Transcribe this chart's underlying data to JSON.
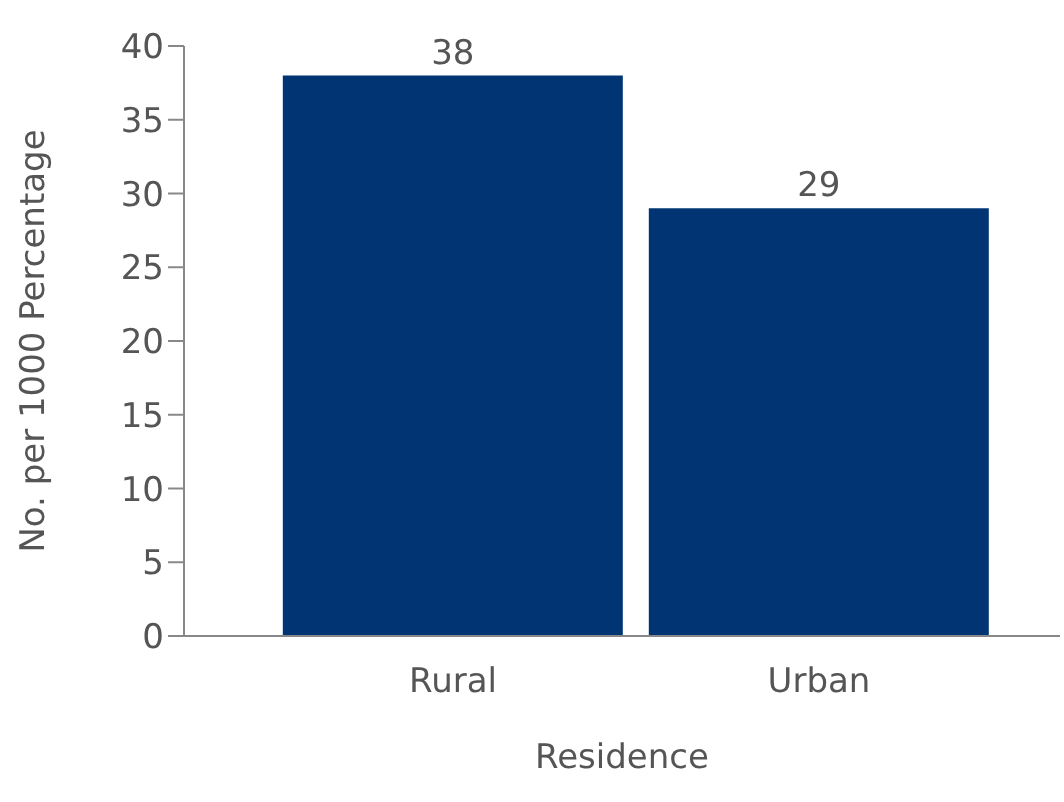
{
  "chart_data": {
    "type": "bar",
    "xlabel": "Residence",
    "ylabel": "No. per 1000 Percentage",
    "categories": [
      "Rural",
      "Urban"
    ],
    "values": [
      38,
      29
    ],
    "color": "#003473",
    "ylim": [
      0,
      40
    ],
    "yticks": [
      0,
      5,
      10,
      15,
      20,
      25,
      30,
      35,
      40
    ],
    "data_labels": true,
    "grid": false,
    "legend": false
  }
}
